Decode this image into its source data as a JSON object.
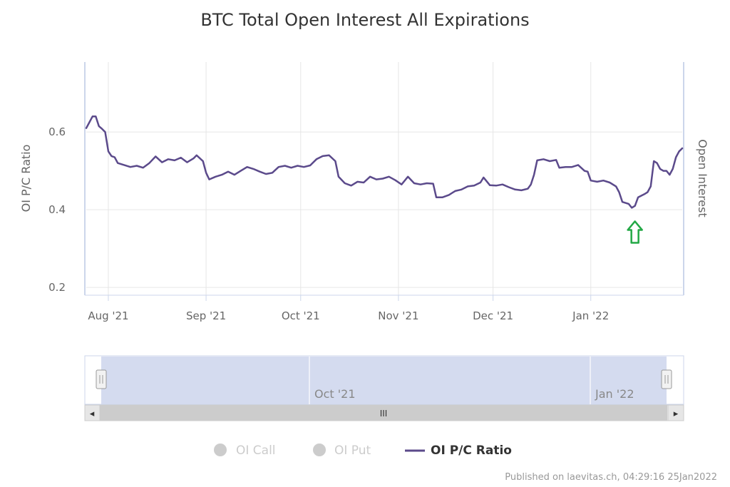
{
  "chart_data": {
    "type": "line",
    "title": "BTC Total Open Interest All Expirations",
    "y_left_label": "OI P/C Ratio",
    "y_right_label": "Open Interest",
    "y_ticks": [
      "0.2",
      "0.4",
      "0.6"
    ],
    "ylim": [
      0.18,
      0.78
    ],
    "x_ticks": [
      {
        "label": "Aug '21",
        "date": "2021-08-01"
      },
      {
        "label": "Sep '21",
        "date": "2021-09-01"
      },
      {
        "label": "Oct '21",
        "date": "2021-10-01"
      },
      {
        "label": "Nov '21",
        "date": "2021-11-01"
      },
      {
        "label": "Dec '21",
        "date": "2021-12-01"
      },
      {
        "label": "Jan '22",
        "date": "2022-01-01"
      }
    ],
    "xlim": [
      "2021-07-25",
      "2022-01-25"
    ],
    "grid": true,
    "legend_position": "bottom-center",
    "series": [
      {
        "name": "OI P/C Ratio",
        "color": "#5b4a8b",
        "points": [
          [
            "2021-07-25",
            0.61
          ],
          [
            "2021-07-26",
            0.625
          ],
          [
            "2021-07-27",
            0.64
          ],
          [
            "2021-07-28",
            0.64
          ],
          [
            "2021-07-29",
            0.615
          ],
          [
            "2021-07-30",
            0.608
          ],
          [
            "2021-07-31",
            0.6
          ],
          [
            "2021-08-01",
            0.55
          ],
          [
            "2021-08-02",
            0.538
          ],
          [
            "2021-08-03",
            0.535
          ],
          [
            "2021-08-04",
            0.52
          ],
          [
            "2021-08-06",
            0.515
          ],
          [
            "2021-08-08",
            0.51
          ],
          [
            "2021-08-10",
            0.513
          ],
          [
            "2021-08-12",
            0.508
          ],
          [
            "2021-08-14",
            0.52
          ],
          [
            "2021-08-16",
            0.537
          ],
          [
            "2021-08-18",
            0.522
          ],
          [
            "2021-08-20",
            0.53
          ],
          [
            "2021-08-22",
            0.527
          ],
          [
            "2021-08-24",
            0.534
          ],
          [
            "2021-08-26",
            0.522
          ],
          [
            "2021-08-28",
            0.532
          ],
          [
            "2021-08-29",
            0.54
          ],
          [
            "2021-08-31",
            0.525
          ],
          [
            "2021-09-01",
            0.495
          ],
          [
            "2021-09-02",
            0.478
          ],
          [
            "2021-09-04",
            0.485
          ],
          [
            "2021-09-06",
            0.49
          ],
          [
            "2021-09-08",
            0.498
          ],
          [
            "2021-09-10",
            0.49
          ],
          [
            "2021-09-12",
            0.5
          ],
          [
            "2021-09-14",
            0.51
          ],
          [
            "2021-09-16",
            0.505
          ],
          [
            "2021-09-18",
            0.498
          ],
          [
            "2021-09-20",
            0.492
          ],
          [
            "2021-09-22",
            0.495
          ],
          [
            "2021-09-24",
            0.51
          ],
          [
            "2021-09-26",
            0.513
          ],
          [
            "2021-09-28",
            0.508
          ],
          [
            "2021-09-30",
            0.513
          ],
          [
            "2021-10-02",
            0.51
          ],
          [
            "2021-10-04",
            0.514
          ],
          [
            "2021-10-06",
            0.53
          ],
          [
            "2021-10-08",
            0.538
          ],
          [
            "2021-10-10",
            0.54
          ],
          [
            "2021-10-12",
            0.525
          ],
          [
            "2021-10-13",
            0.485
          ],
          [
            "2021-10-15",
            0.468
          ],
          [
            "2021-10-17",
            0.462
          ],
          [
            "2021-10-19",
            0.472
          ],
          [
            "2021-10-21",
            0.47
          ],
          [
            "2021-10-23",
            0.485
          ],
          [
            "2021-10-25",
            0.478
          ],
          [
            "2021-10-27",
            0.48
          ],
          [
            "2021-10-29",
            0.485
          ],
          [
            "2021-10-31",
            0.476
          ],
          [
            "2021-11-02",
            0.465
          ],
          [
            "2021-11-04",
            0.485
          ],
          [
            "2021-11-06",
            0.468
          ],
          [
            "2021-11-08",
            0.465
          ],
          [
            "2021-11-10",
            0.468
          ],
          [
            "2021-11-12",
            0.467
          ],
          [
            "2021-11-13",
            0.432
          ],
          [
            "2021-11-15",
            0.432
          ],
          [
            "2021-11-17",
            0.438
          ],
          [
            "2021-11-19",
            0.448
          ],
          [
            "2021-11-21",
            0.452
          ],
          [
            "2021-11-23",
            0.46
          ],
          [
            "2021-11-25",
            0.462
          ],
          [
            "2021-11-27",
            0.47
          ],
          [
            "2021-11-28",
            0.483
          ],
          [
            "2021-11-30",
            0.463
          ],
          [
            "2021-12-02",
            0.462
          ],
          [
            "2021-12-04",
            0.465
          ],
          [
            "2021-12-06",
            0.458
          ],
          [
            "2021-12-08",
            0.452
          ],
          [
            "2021-12-10",
            0.45
          ],
          [
            "2021-12-12",
            0.454
          ],
          [
            "2021-12-13",
            0.465
          ],
          [
            "2021-12-14",
            0.49
          ],
          [
            "2021-12-15",
            0.527
          ],
          [
            "2021-12-17",
            0.53
          ],
          [
            "2021-12-19",
            0.525
          ],
          [
            "2021-12-21",
            0.528
          ],
          [
            "2021-12-22",
            0.508
          ],
          [
            "2021-12-24",
            0.51
          ],
          [
            "2021-12-26",
            0.51
          ],
          [
            "2021-12-28",
            0.515
          ],
          [
            "2021-12-30",
            0.5
          ],
          [
            "2021-12-31",
            0.498
          ],
          [
            "2022-01-01",
            0.475
          ],
          [
            "2022-01-03",
            0.472
          ],
          [
            "2022-01-05",
            0.475
          ],
          [
            "2022-01-07",
            0.47
          ],
          [
            "2022-01-09",
            0.46
          ],
          [
            "2022-01-10",
            0.445
          ],
          [
            "2022-01-11",
            0.42
          ],
          [
            "2022-01-13",
            0.415
          ],
          [
            "2022-01-14",
            0.405
          ],
          [
            "2022-01-15",
            0.41
          ],
          [
            "2022-01-16",
            0.432
          ],
          [
            "2022-01-18",
            0.44
          ],
          [
            "2022-01-19",
            0.445
          ],
          [
            "2022-01-20",
            0.46
          ],
          [
            "2022-01-21",
            0.525
          ],
          [
            "2022-01-22",
            0.52
          ],
          [
            "2022-01-23",
            0.505
          ],
          [
            "2022-01-24",
            0.5
          ],
          [
            "2022-01-25",
            0.5
          ],
          [
            "2022-01-26",
            0.49
          ],
          [
            "2022-01-27",
            0.505
          ],
          [
            "2022-01-28",
            0.535
          ],
          [
            "2022-01-29",
            0.55
          ],
          [
            "2022-01-30",
            0.558
          ]
        ]
      }
    ],
    "annotation": {
      "type": "arrow-up",
      "color": "#22a845",
      "date": "2022-01-15"
    }
  },
  "navigator": {
    "labels": [
      "Oct '21",
      "Jan '22"
    ],
    "scrollbar_grip": "III",
    "left_arrow": "◂",
    "right_arrow": "▸",
    "handle_grip": "||"
  },
  "legend": {
    "items": [
      {
        "label": "OI Call",
        "active": false
      },
      {
        "label": "OI Put",
        "active": false
      },
      {
        "label": "OI P/C Ratio",
        "active": true
      }
    ],
    "inactive_color": "#cccccc",
    "active_color": "#333333"
  },
  "credits": "Published on laevitas.ch, 04:29:16 25Jan2022"
}
